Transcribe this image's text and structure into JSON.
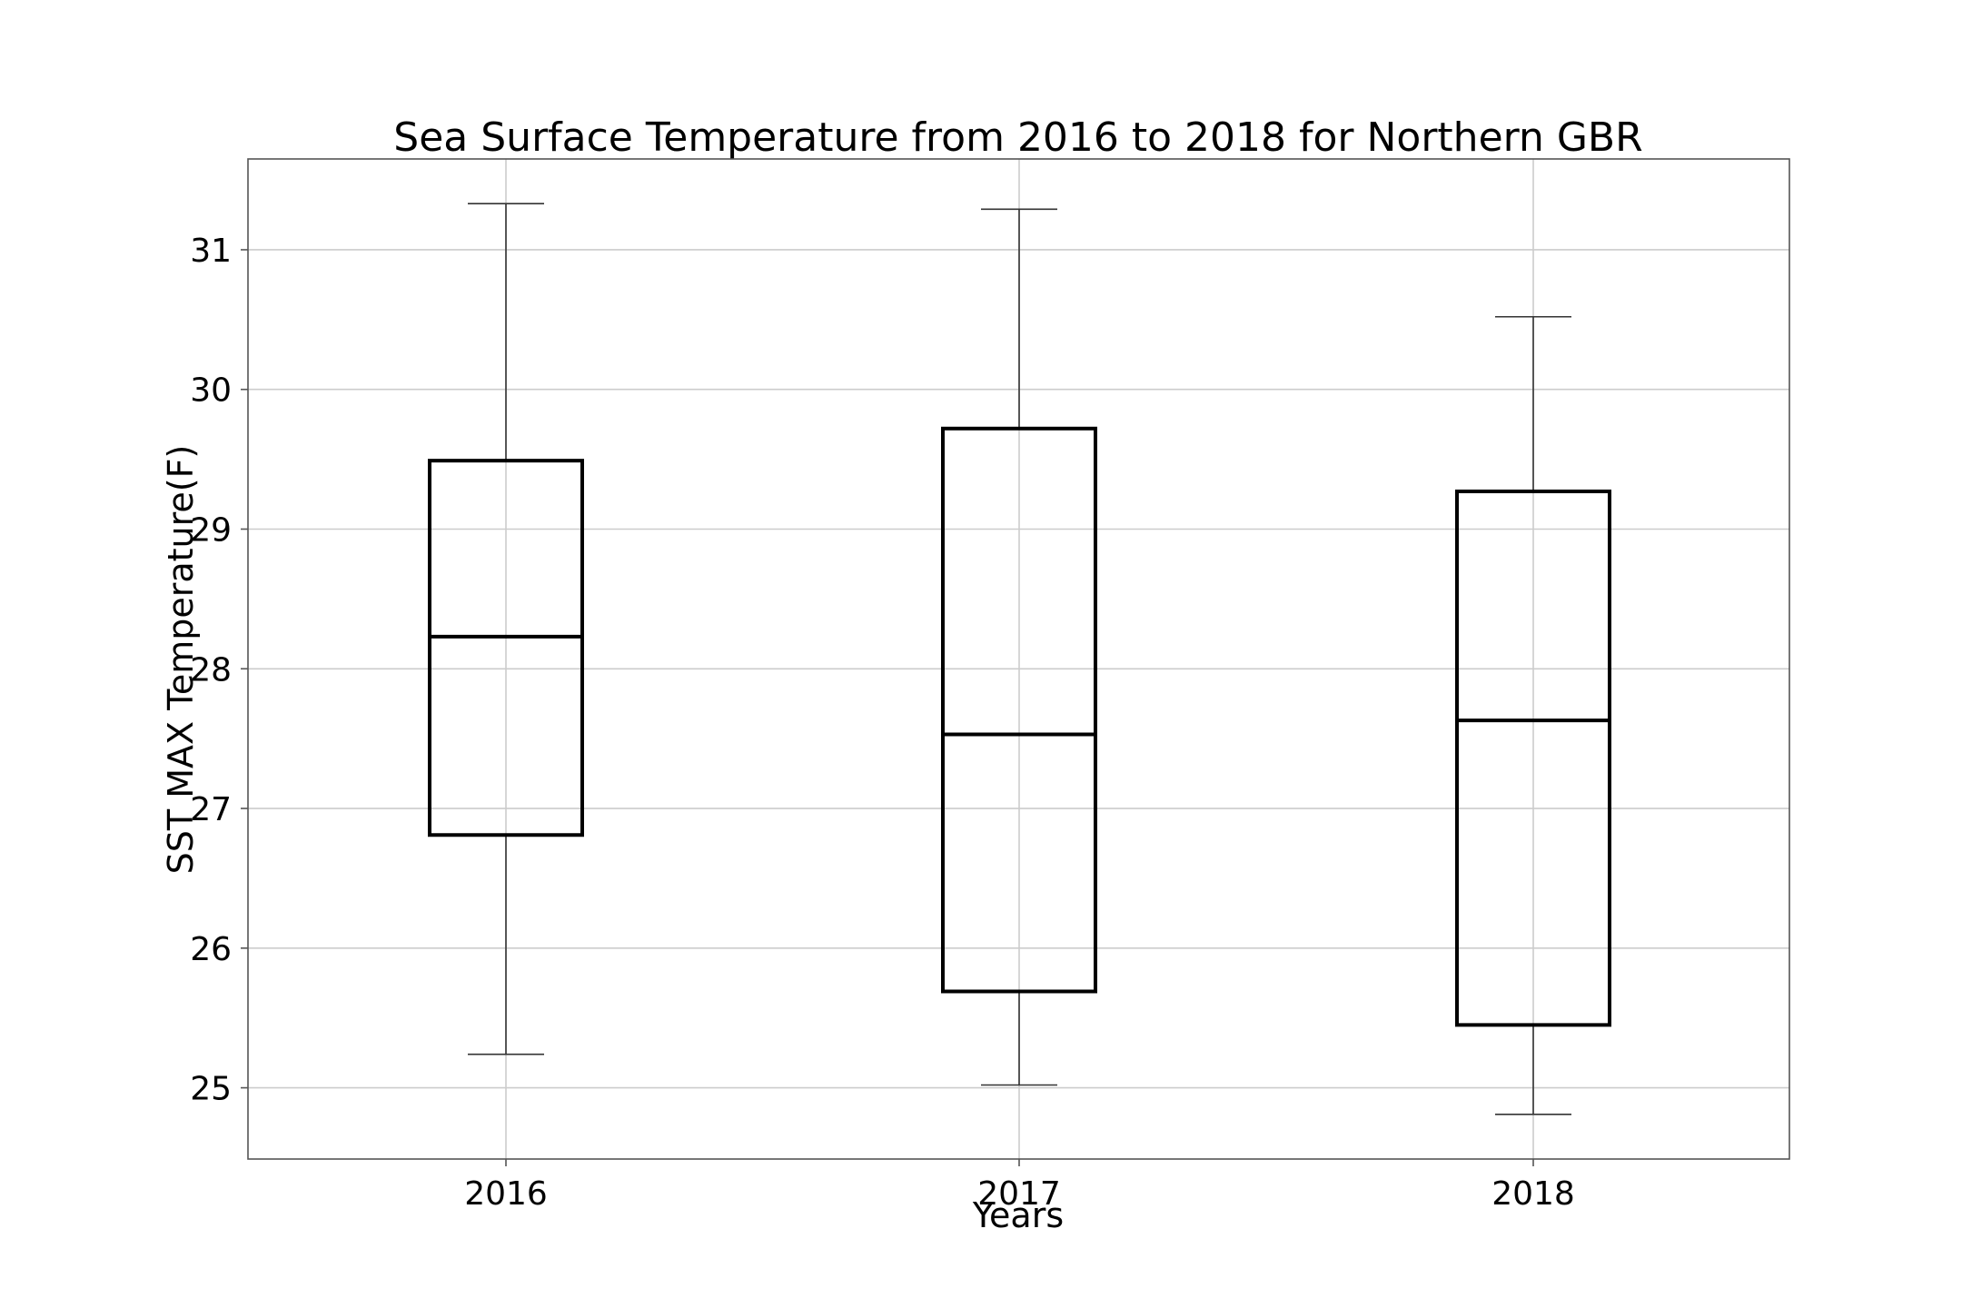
{
  "chart_data": {
    "type": "boxplot",
    "title": "Sea Surface Temperature from 2016 to 2018 for Northern GBR",
    "xlabel": "Years",
    "ylabel": "SST MAX Temperature(F)",
    "categories": [
      "2016",
      "2017",
      "2018"
    ],
    "boxes": [
      {
        "label": "2016",
        "whisker_low": 25.24,
        "q1": 26.81,
        "median": 28.23,
        "q3": 29.49,
        "whisker_high": 31.33
      },
      {
        "label": "2017",
        "whisker_low": 25.02,
        "q1": 25.69,
        "median": 27.53,
        "q3": 29.72,
        "whisker_high": 31.29
      },
      {
        "label": "2018",
        "whisker_low": 24.81,
        "q1": 25.45,
        "median": 27.63,
        "q3": 29.27,
        "whisker_high": 30.52
      }
    ],
    "yticks": [
      25,
      26,
      27,
      28,
      29,
      30,
      31
    ],
    "ylim": [
      24.49,
      31.65
    ],
    "grid": true
  },
  "colors": {
    "box": "#000000",
    "whisker": "#333333",
    "grid": "#cccccc"
  }
}
